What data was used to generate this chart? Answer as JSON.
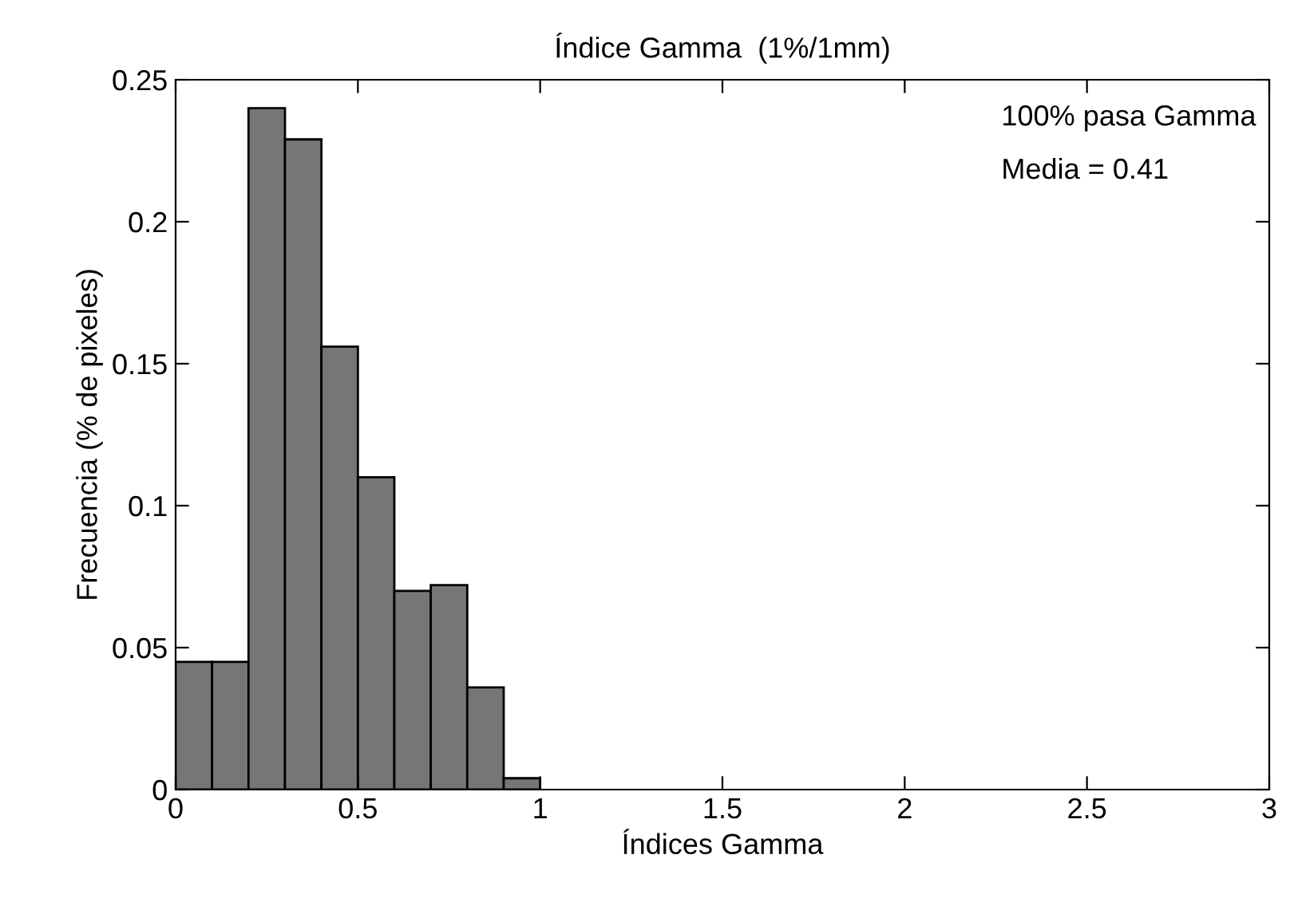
{
  "chart_data": {
    "type": "histogram",
    "title": "Índice Gamma  (1%/1mm)",
    "xlabel": "Índices Gamma",
    "ylabel": "Frecuencia (% de pixeles)",
    "bins": [
      0,
      0.1,
      0.2,
      0.3,
      0.4,
      0.5,
      0.6,
      0.7,
      0.8,
      0.9,
      1.0
    ],
    "values": [
      0.045,
      0.045,
      0.24,
      0.229,
      0.156,
      0.11,
      0.07,
      0.072,
      0.036,
      0.004
    ],
    "color": "#767676",
    "xlim": [
      0,
      3
    ],
    "xticks": [
      0,
      0.5,
      1,
      1.5,
      2,
      2.5,
      3
    ],
    "ylim": [
      0,
      0.25
    ],
    "yticks": [
      0,
      0.05,
      0.1,
      0.15,
      0.2,
      0.25
    ],
    "grid": false,
    "annotations": [
      "100% pasa Gamma",
      "Media = 0.41"
    ]
  }
}
